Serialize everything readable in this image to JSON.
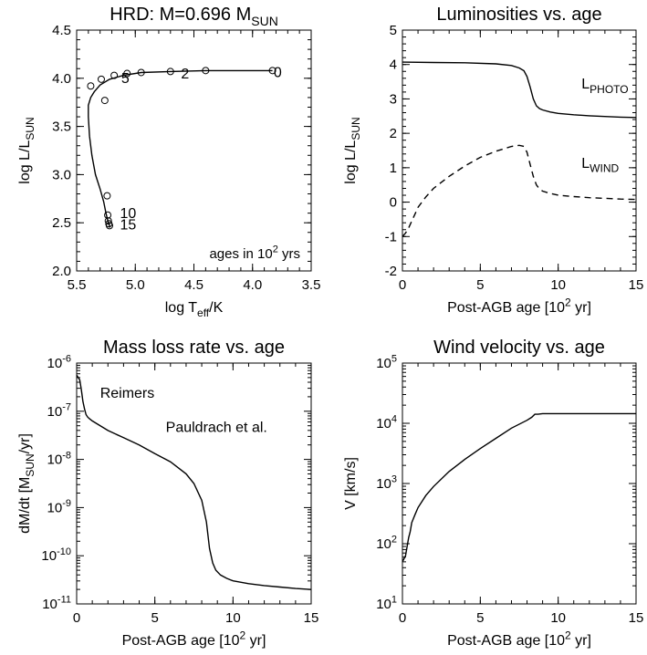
{
  "chart_data": [
    {
      "type": "line",
      "title": "HRD: M=0.696 M",
      "title_sub": "SUN",
      "xlabel": "log T",
      "xlabel_sub": "eff",
      "xlabel_suffix": "/K",
      "ylabel": "log L/L",
      "ylabel_sub": "SUN",
      "xlim": [
        5.5,
        3.5
      ],
      "ylim": [
        2.0,
        4.5
      ],
      "xticks": [
        "5.5",
        "5.0",
        "4.5",
        "4.0",
        "3.5"
      ],
      "yticks": [
        "2.0",
        "2.5",
        "3.0",
        "3.5",
        "4.0",
        "4.5"
      ],
      "annotation": "ages in 10",
      "annotation_sup": "2",
      "annotation_suffix": " yrs",
      "age_labels": [
        {
          "text": "0",
          "x": 3.82,
          "y": 4.01
        },
        {
          "text": "2",
          "x": 4.61,
          "y": 4.0
        },
        {
          "text": "5",
          "x": 5.12,
          "y": 3.95
        },
        {
          "text": "10",
          "x": 5.13,
          "y": 2.55
        },
        {
          "text": "15",
          "x": 5.13,
          "y": 2.43
        }
      ],
      "track": {
        "x": [
          3.83,
          4.0,
          4.4,
          4.7,
          4.95,
          5.1,
          5.22,
          5.3,
          5.35,
          5.38,
          5.4,
          5.4,
          5.39,
          5.37,
          5.34,
          5.3,
          5.27,
          5.25,
          5.24,
          5.23,
          5.22,
          5.22
        ],
        "y": [
          4.08,
          4.08,
          4.08,
          4.07,
          4.06,
          4.03,
          3.99,
          3.93,
          3.86,
          3.8,
          3.72,
          3.6,
          3.4,
          3.2,
          3.0,
          2.85,
          2.72,
          2.6,
          2.55,
          2.5,
          2.47,
          2.45
        ]
      },
      "markers": {
        "x": [
          3.83,
          4.4,
          4.7,
          4.95,
          5.07,
          5.18,
          5.29,
          5.38,
          5.26,
          5.24,
          5.235,
          5.23,
          5.225,
          5.22
        ],
        "y": [
          4.08,
          4.08,
          4.07,
          4.06,
          4.05,
          4.03,
          3.99,
          3.92,
          3.77,
          2.78,
          2.58,
          2.52,
          2.49,
          2.47
        ]
      }
    },
    {
      "type": "line",
      "title": "Luminosities vs. age",
      "xlabel": "Post-AGB age [10",
      "xlabel_sup": "2",
      "xlabel_suffix": " yr]",
      "ylabel": "log L/L",
      "ylabel_sub": "SUN",
      "xlim": [
        0,
        15
      ],
      "ylim": [
        -2,
        5
      ],
      "xticks": [
        "0",
        "5",
        "10",
        "15"
      ],
      "yticks": [
        "-2",
        "-1",
        "0",
        "1",
        "2",
        "3",
        "4",
        "5"
      ],
      "series": [
        {
          "name": "L",
          "name_sub": "PHOTO",
          "style": "solid",
          "x": [
            0,
            2,
            4,
            6,
            7,
            7.5,
            7.8,
            8.0,
            8.2,
            8.4,
            8.6,
            8.8,
            9.0,
            9.5,
            10,
            11,
            12,
            13,
            14,
            15
          ],
          "y": [
            4.07,
            4.06,
            4.05,
            4.02,
            3.97,
            3.9,
            3.82,
            3.65,
            3.35,
            3.0,
            2.8,
            2.72,
            2.68,
            2.62,
            2.58,
            2.54,
            2.51,
            2.49,
            2.47,
            2.46
          ]
        },
        {
          "name": "L",
          "name_sub": "WIND",
          "style": "dashed",
          "x": [
            0,
            0.2,
            0.4,
            0.6,
            0.8,
            1.0,
            1.5,
            2,
            3,
            4,
            5,
            6,
            7,
            7.5,
            7.8,
            8.0,
            8.2,
            8.4,
            8.6,
            8.8,
            9.0,
            9.5,
            10,
            11,
            12,
            13,
            14,
            15
          ],
          "y": [
            -1.0,
            -0.9,
            -0.75,
            -0.55,
            -0.35,
            -0.15,
            0.15,
            0.4,
            0.75,
            1.05,
            1.3,
            1.48,
            1.62,
            1.65,
            1.62,
            1.45,
            1.1,
            0.75,
            0.5,
            0.38,
            0.32,
            0.25,
            0.2,
            0.16,
            0.13,
            0.11,
            0.09,
            0.08
          ]
        }
      ]
    },
    {
      "type": "line",
      "title": "Mass loss rate vs. age",
      "xlabel": "Post-AGB age [10",
      "xlabel_sup": "2",
      "xlabel_suffix": " yr]",
      "ylabel": "dM/dt [M",
      "ylabel_sub": "SUN",
      "ylabel_suffix": "/yr]",
      "xlim": [
        0,
        15
      ],
      "ylim": [
        -11,
        -6
      ],
      "yscale": "log",
      "xticks": [
        "0",
        "5",
        "10",
        "15"
      ],
      "yticks": [
        "-11",
        "-10",
        "-9",
        "-8",
        "-7",
        "-6"
      ],
      "annotations": [
        "Reimers",
        "Pauldrach et al."
      ],
      "series": [
        {
          "x": [
            0,
            0.1,
            0.2,
            0.3,
            0.4,
            0.5,
            0.6,
            0.7,
            0.8,
            1.0,
            1.5,
            2,
            3,
            4,
            5,
            6,
            7,
            7.5,
            8.0,
            8.3,
            8.5,
            8.7,
            8.9,
            9.2,
            9.6,
            10,
            11,
            12,
            13,
            14,
            15
          ],
          "y": [
            -6.25,
            -6.3,
            -6.35,
            -6.55,
            -6.8,
            -6.95,
            -7.07,
            -7.12,
            -7.15,
            -7.2,
            -7.3,
            -7.4,
            -7.55,
            -7.7,
            -7.88,
            -8.05,
            -8.3,
            -8.5,
            -8.85,
            -9.3,
            -9.85,
            -10.15,
            -10.3,
            -10.4,
            -10.47,
            -10.52,
            -10.58,
            -10.62,
            -10.65,
            -10.68,
            -10.7
          ]
        }
      ]
    },
    {
      "type": "line",
      "title": "Wind velocity vs. age",
      "xlabel": "Post-AGB age [10",
      "xlabel_sup": "2",
      "xlabel_suffix": " yr]",
      "ylabel": "V [km/s]",
      "xlim": [
        0,
        15
      ],
      "ylim": [
        1,
        5
      ],
      "yscale": "log",
      "xticks": [
        "0",
        "5",
        "10",
        "15"
      ],
      "yticks": [
        "1",
        "2",
        "3",
        "4",
        "5"
      ],
      "series": [
        {
          "x": [
            0,
            0.1,
            0.2,
            0.3,
            0.4,
            0.5,
            0.6,
            0.8,
            1.0,
            1.5,
            2,
            3,
            4,
            5,
            6,
            7,
            8,
            8.3,
            8.5,
            8.7,
            9,
            10,
            11,
            12,
            13,
            14,
            15
          ],
          "y": [
            1.7,
            1.75,
            1.8,
            1.95,
            2.1,
            2.2,
            2.35,
            2.48,
            2.6,
            2.8,
            2.95,
            3.2,
            3.4,
            3.58,
            3.75,
            3.92,
            4.05,
            4.1,
            4.15,
            4.15,
            4.16,
            4.16,
            4.16,
            4.16,
            4.16,
            4.16,
            4.16
          ]
        }
      ]
    }
  ]
}
